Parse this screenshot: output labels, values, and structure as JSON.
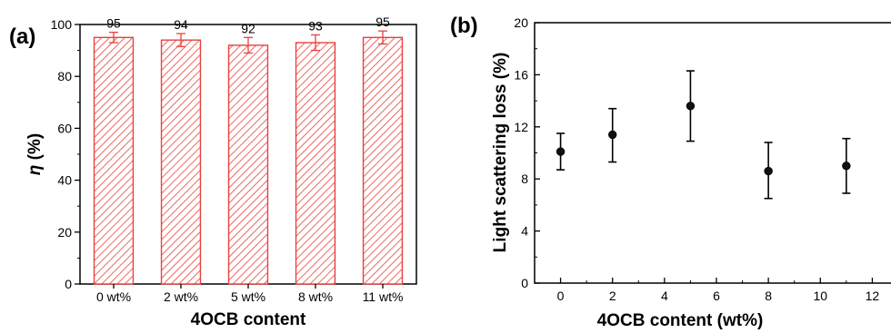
{
  "chart_data": [
    {
      "type": "bar",
      "panel_label": "(a)",
      "title": "",
      "xlabel": "4OCB content",
      "ylabel_symbol": "η",
      "ylabel_unit": " (%)",
      "categories": [
        "0 wt%",
        "2 wt%",
        "5 wt%",
        "8 wt%",
        "11 wt%"
      ],
      "values": [
        95,
        94,
        92,
        93,
        95
      ],
      "error": [
        2,
        2.5,
        3,
        3,
        2.5
      ],
      "data_labels": [
        "95",
        "94",
        "92",
        "93",
        "95"
      ],
      "ylim": [
        0,
        100
      ],
      "yticks": [
        0,
        20,
        40,
        60,
        80,
        100
      ],
      "bar_style": "red diagonal hatch",
      "color": "#e8413c",
      "grid": false
    },
    {
      "type": "scatter",
      "panel_label": "(b)",
      "title": "",
      "xlabel": "4OCB content (wt%)",
      "ylabel": "Light scattering loss (%)",
      "x": [
        0,
        2,
        5,
        8,
        11
      ],
      "y": [
        10.1,
        11.4,
        13.6,
        8.6,
        9.0
      ],
      "yerr_upper": [
        11.5,
        13.4,
        16.3,
        10.8,
        11.1
      ],
      "yerr_lower": [
        8.7,
        9.3,
        10.9,
        6.5,
        6.9
      ],
      "xlim": [
        -1,
        13
      ],
      "xticks": [
        0,
        2,
        4,
        6,
        8,
        10,
        12
      ],
      "ylim": [
        0,
        20
      ],
      "yticks": [
        0,
        4,
        8,
        12,
        16,
        20
      ],
      "marker": "black filled circle",
      "color": "#000000",
      "grid": false
    }
  ]
}
